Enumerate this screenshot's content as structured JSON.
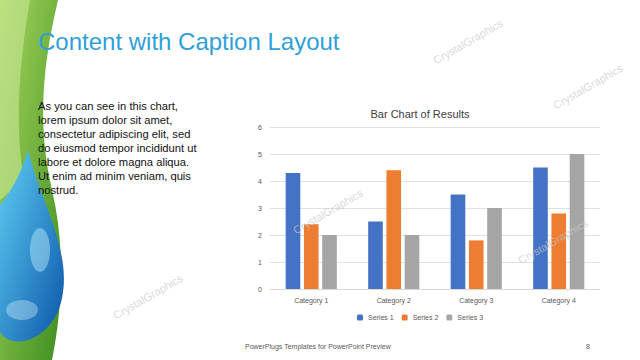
{
  "slide": {
    "title": "Content with Caption Layout",
    "caption": [
      "As you can see in this chart,",
      "lorem ipsum dolor sit amet,",
      "consectetur adipiscing elit, sed",
      "do eiusmod tempor incididunt ut",
      "labore et dolore magna aliqua.",
      "Ut enim ad minim veniam, quis",
      "nostrud."
    ],
    "footer": "PowerPlugs Templates for PowerPoint Preview",
    "page_number": 8,
    "watermark": "CrystalGraphics"
  },
  "chart_data": {
    "type": "bar",
    "title": "Bar Chart of Results",
    "categories": [
      "Category 1",
      "Category 2",
      "Category 3",
      "Category 4"
    ],
    "series": [
      {
        "name": "Series 1",
        "color": "#4472c4",
        "values": [
          4.3,
          2.5,
          3.5,
          4.5
        ]
      },
      {
        "name": "Series 2",
        "color": "#ed7d31",
        "values": [
          2.4,
          4.4,
          1.8,
          2.8
        ]
      },
      {
        "name": "Series 3",
        "color": "#a5a5a5",
        "values": [
          2,
          2,
          3,
          5
        ]
      }
    ],
    "ylim": [
      0,
      6
    ],
    "yticks": [
      0,
      1,
      2,
      3,
      4,
      5,
      6
    ],
    "grid": true,
    "legend": "bottom"
  }
}
